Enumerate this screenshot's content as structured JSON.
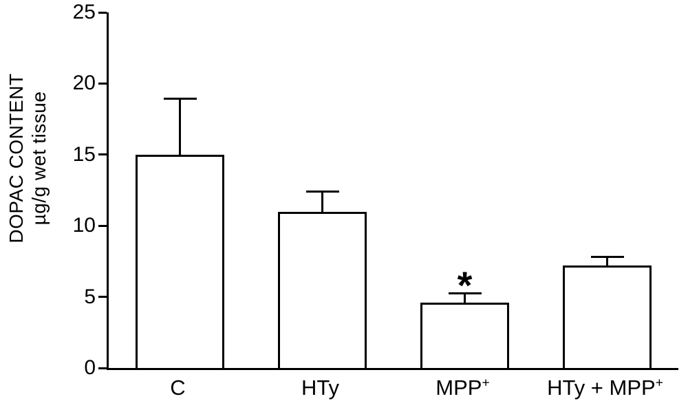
{
  "figure": {
    "background": "#ffffff",
    "axis_color": "#000000"
  },
  "chart_data": {
    "type": "bar",
    "title": "",
    "xlabel": "",
    "ylabel": "DOPAC CONTENT µg/g wet tissue",
    "ylabel_lines": [
      "DOPAC CONTENT",
      "µg/g wet tissue"
    ],
    "categories": [
      "C",
      "HTy",
      "MPP+",
      "HTy + MPP+"
    ],
    "category_labels": [
      {
        "base": "C",
        "sup": ""
      },
      {
        "base": "HTy",
        "sup": ""
      },
      {
        "base": "MPP",
        "sup": "+"
      },
      {
        "base": "HTy + MPP",
        "sup": "+"
      }
    ],
    "values": [
      15.0,
      11.0,
      4.6,
      7.2
    ],
    "errors_plus": [
      4.0,
      1.5,
      0.7,
      0.7
    ],
    "ylim": [
      0,
      25
    ],
    "yticks": [
      0,
      5,
      10,
      15,
      20,
      25
    ],
    "grid": false,
    "legend_position": "none",
    "annotations": [
      {
        "category_index": 2,
        "text": "*"
      }
    ],
    "bar_fill": "#ffffff",
    "bar_edge": "#000000"
  }
}
